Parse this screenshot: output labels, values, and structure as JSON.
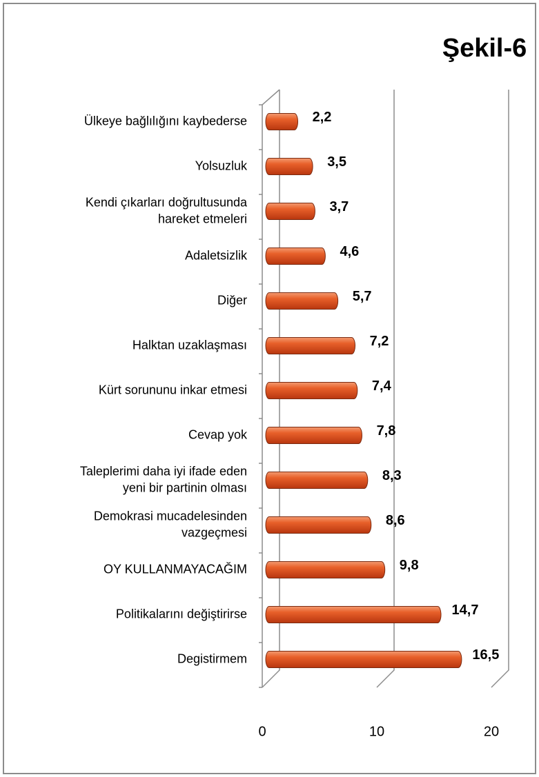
{
  "chart_data": {
    "type": "bar",
    "orientation": "horizontal",
    "title": "Şekil-6",
    "categories": [
      [
        "Ülkeye bağlılığını kaybederse"
      ],
      [
        "Yolsuzluk"
      ],
      [
        "Kendi çıkarları doğrultusunda",
        "hareket etmeleri"
      ],
      [
        "Adaletsizlik"
      ],
      [
        "Diğer"
      ],
      [
        "Halktan uzaklaşması"
      ],
      [
        "Kürt sorununu inkar etmesi"
      ],
      [
        "Cevap yok"
      ],
      [
        "Taleplerimi daha iyi ifade eden",
        "yeni bir partinin olması"
      ],
      [
        "Demokrasi mucadelesinden",
        "vazgeçmesi"
      ],
      [
        "OY KULLANMAYACAĞIM"
      ],
      [
        "Politikalarını değiştirirse"
      ],
      [
        "Degistirmem"
      ]
    ],
    "values": [
      2.2,
      3.5,
      3.7,
      4.6,
      5.7,
      7.2,
      7.4,
      7.8,
      8.3,
      8.6,
      9.8,
      14.7,
      16.5
    ],
    "value_labels": [
      "2,2",
      "3,5",
      "3,7",
      "4,6",
      "5,7",
      "7,2",
      "7,4",
      "7,8",
      "8,3",
      "8,6",
      "9,8",
      "14,7",
      "16,5"
    ],
    "color": "#e0501c",
    "xlim": [
      0,
      20
    ],
    "xticks": [
      0,
      10,
      20
    ],
    "grid": true
  }
}
